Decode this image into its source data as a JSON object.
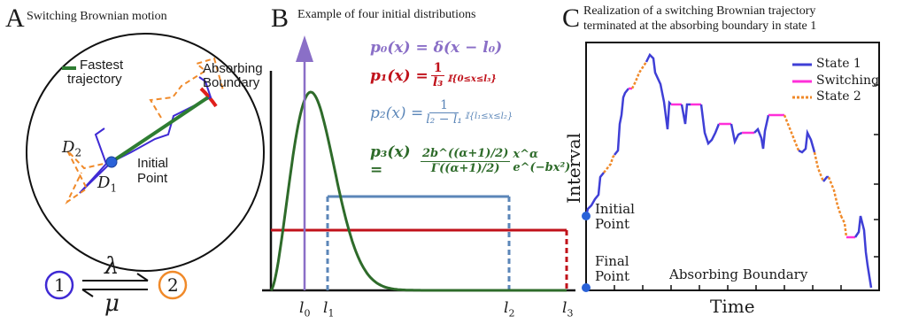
{
  "panel_a": {
    "letter": "A",
    "title": "Switching Brownian motion",
    "fastest_label_1": "Fastest",
    "fastest_label_2": "trajectory",
    "boundary_label_1": "Absorbing",
    "boundary_label_2": "Boundary",
    "initial_label_1": "Initial",
    "initial_label_2": "Point",
    "d1": "D",
    "d1_sub": "1",
    "d2": "D",
    "d2_sub": "2",
    "state_1": "1",
    "state_2": "2",
    "rate_forward": "λ",
    "rate_backward": "μ",
    "colors": {
      "fastest": "#2e7d32",
      "state1": "#3f2ad4",
      "state2": "#f08a2a",
      "boundary": "#e0201c",
      "point": "#2a62d8"
    }
  },
  "panel_b": {
    "letter": "B",
    "title": "Example of four initial distributions",
    "eq_p0": "p₀(x) = δ(x − l₀)",
    "eq_p1_lhs": "p₁(x) =",
    "eq_p1_num": "1",
    "eq_p1_den": "l₃",
    "eq_p1_ind": "𝕀{0≤x≤l₃}",
    "eq_p2_lhs": "p₂(x) =",
    "eq_p2_num": "1",
    "eq_p2_den": "l₂ − l₁",
    "eq_p2_ind": "𝕀{l₁≤x≤l₂}",
    "eq_p3_lhs": "p₃(x) =",
    "eq_p3_num": "2b^((α+1)/2)",
    "eq_p3_den": "Γ((α+1)/2)",
    "eq_p3_tail": "x^α e^(−bx²)",
    "tick_labels": [
      "l0",
      "l1",
      "l2",
      "l3"
    ],
    "colors": {
      "p0": "#8a6fc7",
      "p1": "#c0111a",
      "p2": "#5b86b8",
      "p3": "#2e6b2a"
    }
  },
  "panel_c": {
    "letter": "C",
    "title_line1": "Realization of a switching Brownian trajectory",
    "title_line2": "terminated at the absorbing boundary in state 1",
    "legend": [
      {
        "label": "State 1",
        "color": "#3f3fd6",
        "style": "solid"
      },
      {
        "label": "Switching",
        "color": "#ff2fd9",
        "style": "solid"
      },
      {
        "label": "State 2",
        "color": "#f08a2a",
        "style": "dotted"
      }
    ],
    "ylabel": "Interval",
    "xlabel": "Time",
    "initial_label_1": "Initial",
    "initial_label_2": "Point",
    "final_label_1": "Final",
    "final_label_2": "Point",
    "boundary_label": "Absorbing Boundary"
  }
}
